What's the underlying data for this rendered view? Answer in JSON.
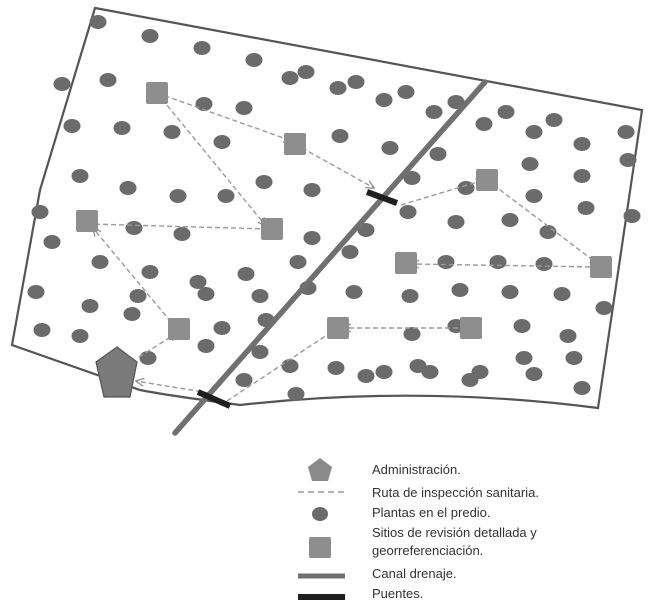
{
  "colors": {
    "background": "#ffffff",
    "boundary": "#555555",
    "plant": "#6b6b6b",
    "site": "#8e8e8e",
    "admin": "#7a7a7a",
    "route": "#9a9a9a",
    "canal": "#707070",
    "bridge": "#1e1e1e"
  },
  "legend": {
    "administracion": "Administración.",
    "ruta": "Ruta de inspección sanitaria.",
    "plantas": "Plantas en el predio.",
    "sitios_line1": "Sitios de revisión detallada y",
    "sitios_line2": "georreferenciación.",
    "canal": "Canal drenaje.",
    "puentes": "Puentes."
  }
}
